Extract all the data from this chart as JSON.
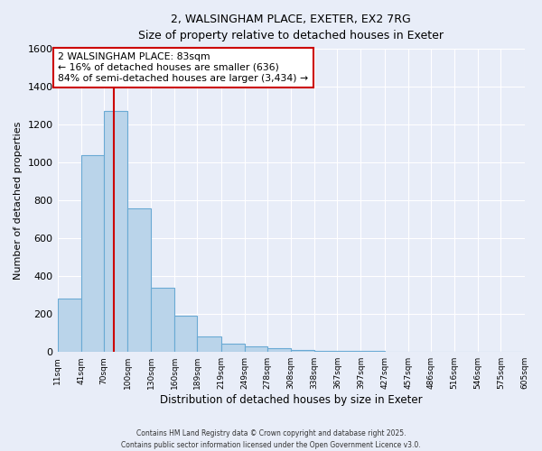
{
  "title_line1": "2, WALSINGHAM PLACE, EXETER, EX2 7RG",
  "title_line2": "Size of property relative to detached houses in Exeter",
  "xlabel": "Distribution of detached houses by size in Exeter",
  "ylabel": "Number of detached properties",
  "bin_labels": [
    "11sqm",
    "41sqm",
    "70sqm",
    "100sqm",
    "130sqm",
    "160sqm",
    "189sqm",
    "219sqm",
    "249sqm",
    "278sqm",
    "308sqm",
    "338sqm",
    "367sqm",
    "397sqm",
    "427sqm",
    "457sqm",
    "486sqm",
    "516sqm",
    "546sqm",
    "575sqm",
    "605sqm"
  ],
  "bin_edges": [
    11,
    41,
    70,
    100,
    130,
    160,
    189,
    219,
    249,
    278,
    308,
    338,
    367,
    397,
    427,
    457,
    486,
    516,
    546,
    575,
    605
  ],
  "bar_values": [
    280,
    1040,
    1270,
    760,
    340,
    190,
    80,
    45,
    30,
    20,
    10,
    5,
    5,
    5,
    3,
    3,
    2,
    2,
    2,
    2
  ],
  "bar_color": "#bad4ea",
  "bar_edge_color": "#6aaad4",
  "property_size": 83,
  "red_line_color": "#cc0000",
  "ylim": [
    0,
    1600
  ],
  "yticks": [
    0,
    200,
    400,
    600,
    800,
    1000,
    1200,
    1400,
    1600
  ],
  "annotation_text": "2 WALSINGHAM PLACE: 83sqm\n← 16% of detached houses are smaller (636)\n84% of semi-detached houses are larger (3,434) →",
  "annotation_box_color": "#ffffff",
  "annotation_box_edge_color": "#cc0000",
  "bg_color": "#e8edf8",
  "grid_color": "#ffffff",
  "footer_line1": "Contains HM Land Registry data © Crown copyright and database right 2025.",
  "footer_line2": "Contains public sector information licensed under the Open Government Licence v3.0."
}
